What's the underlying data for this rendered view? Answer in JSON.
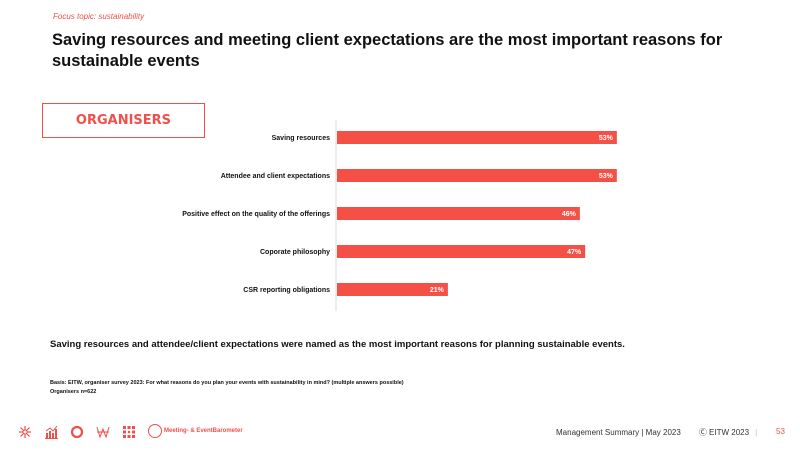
{
  "header": {
    "focus_topic": "Focus topic:  sustainability",
    "title": "Saving resources and meeting client expectations are the most important reasons for sustainable events"
  },
  "segment_label": "ORGANISERS",
  "chart_data": {
    "type": "bar",
    "orientation": "horizontal",
    "title": "",
    "xlabel": "",
    "ylabel": "",
    "categories": [
      "Saving resources",
      "Attendee and client expectations",
      "Positive effect on the quality of the offerings",
      "Coporate philosophy",
      "CSR reporting obligations"
    ],
    "values": [
      53,
      53,
      46,
      47,
      21
    ],
    "value_labels": [
      "53%",
      "53%",
      "46%",
      "47%",
      "21%"
    ],
    "unit": "%",
    "xlim": [
      0,
      100
    ],
    "grid": false,
    "legend": "none",
    "bar_color": "#f55045"
  },
  "summary": "Saving resources and attendee/client expectations were named as the most important reasons for planning sustainable events.",
  "basis": {
    "line1": "Basis: EITW,  organiser survey 2023:  For what reasons do you plan your events with sustainability in mind? (multiple answers possible)",
    "line2": "Organisers n=622"
  },
  "footer": {
    "icons": [
      "sparkle-icon",
      "bar-chart-icon",
      "ring-icon",
      "network-icon",
      "grid-icon"
    ],
    "logo_text": "Meeting- & EventBarometer",
    "report": "Management Summary | May 2023",
    "copyright": "Ⓒ EITW 2023",
    "separator": "|",
    "page_number": "53"
  },
  "colors": {
    "accent": "#f0504a",
    "bar": "#f55045",
    "text": "#111111"
  }
}
